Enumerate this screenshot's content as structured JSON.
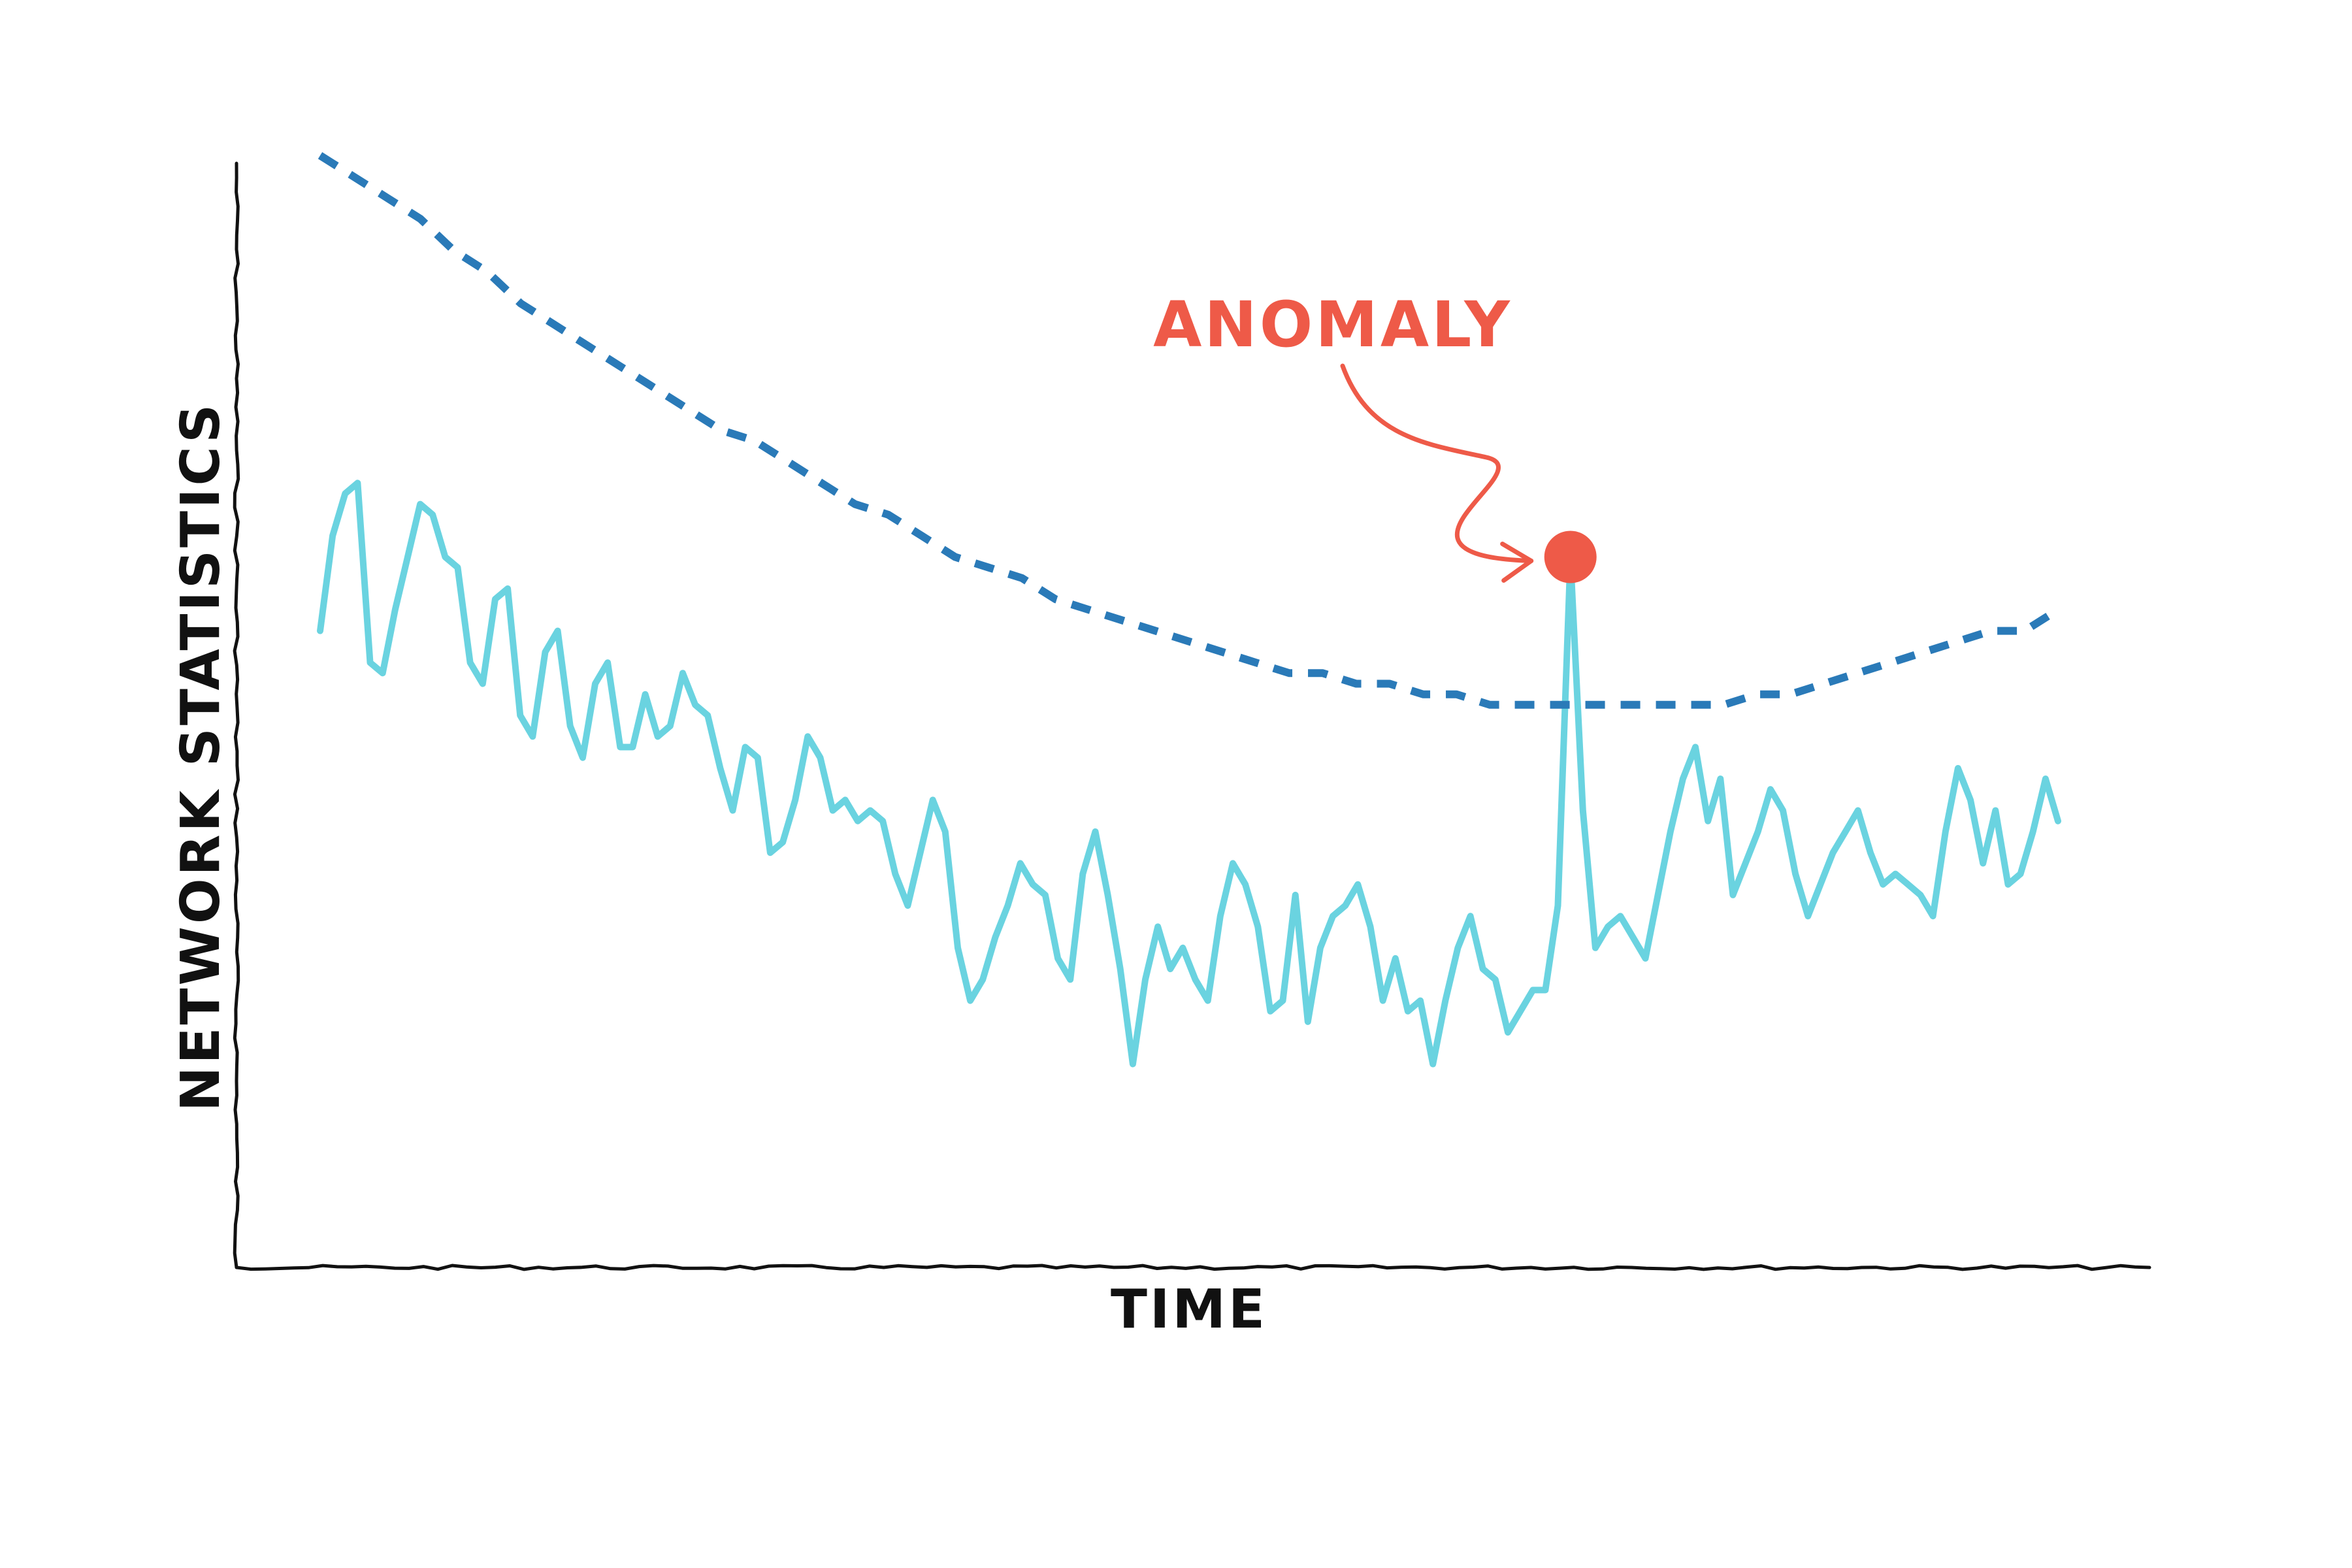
{
  "chart_data": {
    "type": "line",
    "title": "",
    "xlabel": "TIME",
    "ylabel": "NETWORK STATISTICS",
    "xlim": [
      0,
      160
    ],
    "ylim": [
      0,
      100
    ],
    "grid": false,
    "ticks": false,
    "series": [
      {
        "style": "solid",
        "color": "#6ad3e0",
        "values": [
          55,
          64,
          68,
          69,
          52,
          51,
          57,
          62,
          67,
          66,
          62,
          61,
          52,
          50,
          58,
          59,
          47,
          45,
          53,
          55,
          46,
          43,
          50,
          52,
          44,
          44,
          49,
          45,
          46,
          51,
          48,
          47,
          42,
          38,
          44,
          43,
          34,
          35,
          39,
          45,
          43,
          38,
          39,
          37,
          38,
          37,
          32,
          29,
          34,
          39,
          36,
          25,
          20,
          22,
          26,
          29,
          33,
          31,
          30,
          24,
          22,
          32,
          36,
          30,
          23,
          14,
          22,
          27,
          23,
          25,
          22,
          20,
          28,
          33,
          31,
          27,
          19,
          20,
          30,
          18,
          25,
          28,
          29,
          31,
          27,
          20,
          24,
          19,
          20,
          14,
          20,
          25,
          28,
          23,
          22,
          17,
          19,
          21,
          21,
          29,
          62,
          38,
          25,
          27,
          28,
          26,
          24,
          30,
          36,
          41,
          44,
          37,
          41,
          30,
          33,
          36,
          40,
          38,
          32,
          28,
          31,
          34,
          36,
          38,
          34,
          31,
          32,
          31,
          30,
          28,
          36,
          42,
          39,
          33,
          38,
          31,
          32,
          36,
          41,
          37
        ]
      },
      {
        "style": "dashed",
        "color": "#2a7ab8",
        "values": [
          100,
          98,
          96,
          94,
          91,
          89,
          86,
          84,
          82,
          80,
          78,
          76,
          74,
          73,
          71,
          69,
          67,
          66,
          64,
          62,
          61,
          60,
          58,
          57,
          56,
          55,
          54,
          53,
          52,
          51,
          51,
          50,
          50,
          49,
          49,
          48,
          48,
          48,
          48,
          48,
          48,
          48,
          48,
          49,
          49,
          50,
          51,
          52,
          53,
          54,
          55,
          55,
          57
        ]
      }
    ],
    "annotation": {
      "label": "ANOMALY",
      "color": "#ee5a48",
      "marker_series": 0,
      "marker_index": 100
    }
  }
}
